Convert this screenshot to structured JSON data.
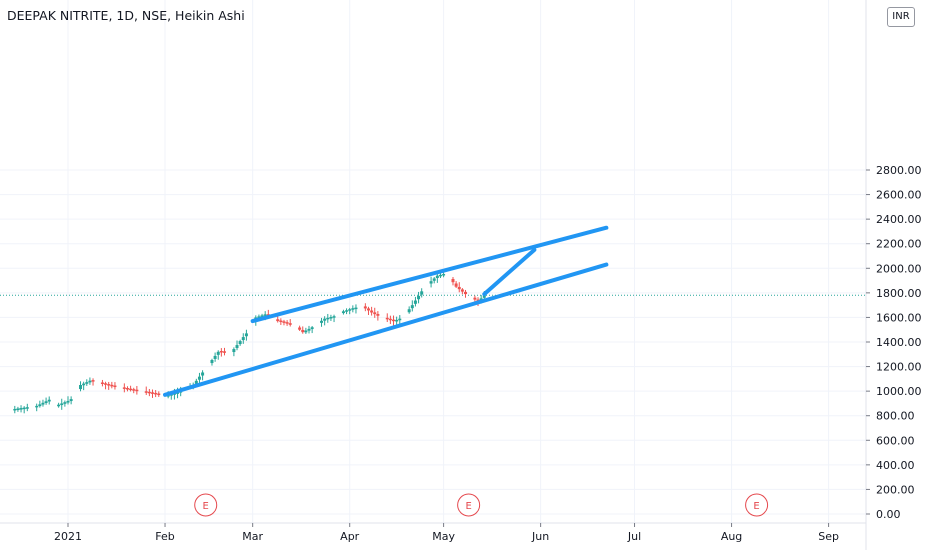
{
  "title": "DEEPAK NITRITE, 1D, NSE, Heikin Ashi",
  "currency": "INR",
  "colors": {
    "up": "#26a69a",
    "down": "#ef5350",
    "trendline": "#2196f3",
    "price_line": "#26a69a",
    "earnings": "#e5484d",
    "grid": "#f0f3fa"
  },
  "chart_data": {
    "type": "candlestick",
    "y_axis": {
      "min": 0,
      "max": 2800,
      "ticks": [
        "0.00",
        "200.00",
        "400.00",
        "600.00",
        "800.00",
        "1000.00",
        "1200.00",
        "1400.00",
        "1600.00",
        "1800.00",
        "2000.00",
        "2200.00",
        "2400.00",
        "2600.00",
        "2800.00"
      ]
    },
    "x_axis": {
      "ticks": [
        {
          "label": "2021",
          "day": 0
        },
        {
          "label": "Feb",
          "day": 31
        },
        {
          "label": "Mar",
          "day": 59
        },
        {
          "label": "Apr",
          "day": 90
        },
        {
          "label": "May",
          "day": 120
        },
        {
          "label": "Jun",
          "day": 151
        },
        {
          "label": "Jul",
          "day": 181
        },
        {
          "label": "Aug",
          "day": 212
        },
        {
          "label": "Sep",
          "day": 243
        }
      ]
    },
    "horizontal_line": 1780,
    "earnings_markers": [
      {
        "label": "E",
        "day": 44
      },
      {
        "label": "E",
        "day": 128
      },
      {
        "label": "E",
        "day": 220
      }
    ],
    "anchors": [
      {
        "day": -17,
        "price": 855
      },
      {
        "day": -10,
        "price": 880
      },
      {
        "day": -6,
        "price": 930
      },
      {
        "day": -4,
        "price": 880
      },
      {
        "day": 0,
        "price": 920
      },
      {
        "day": 2,
        "price": 950
      },
      {
        "day": 4,
        "price": 1050
      },
      {
        "day": 7,
        "price": 1085
      },
      {
        "day": 14,
        "price": 1040
      },
      {
        "day": 20,
        "price": 1010
      },
      {
        "day": 27,
        "price": 980
      },
      {
        "day": 31,
        "price": 960
      },
      {
        "day": 35,
        "price": 990
      },
      {
        "day": 40,
        "price": 1050
      },
      {
        "day": 45,
        "price": 1220
      },
      {
        "day": 48,
        "price": 1320
      },
      {
        "day": 52,
        "price": 1310
      },
      {
        "day": 56,
        "price": 1440
      },
      {
        "day": 58,
        "price": 1500
      },
      {
        "day": 60,
        "price": 1600
      },
      {
        "day": 63,
        "price": 1625
      },
      {
        "day": 67,
        "price": 1570
      },
      {
        "day": 70,
        "price": 1550
      },
      {
        "day": 73,
        "price": 1520
      },
      {
        "day": 75,
        "price": 1480
      },
      {
        "day": 78,
        "price": 1520
      },
      {
        "day": 82,
        "price": 1590
      },
      {
        "day": 85,
        "price": 1610
      },
      {
        "day": 88,
        "price": 1650
      },
      {
        "day": 91,
        "price": 1675
      },
      {
        "day": 94,
        "price": 1690
      },
      {
        "day": 97,
        "price": 1640
      },
      {
        "day": 100,
        "price": 1600
      },
      {
        "day": 104,
        "price": 1570
      },
      {
        "day": 107,
        "price": 1600
      },
      {
        "day": 110,
        "price": 1700
      },
      {
        "day": 114,
        "price": 1850
      },
      {
        "day": 118,
        "price": 1940
      },
      {
        "day": 121,
        "price": 1960
      },
      {
        "day": 124,
        "price": 1850
      },
      {
        "day": 127,
        "price": 1790
      },
      {
        "day": 129,
        "price": 1760
      },
      {
        "day": 131,
        "price": 1730
      },
      {
        "day": 133,
        "price": 1780
      }
    ],
    "trendlines": [
      {
        "name": "upper-channel",
        "from": {
          "day": 59,
          "price": 1570
        },
        "to": {
          "day": 172,
          "price": 2330
        }
      },
      {
        "name": "lower-channel",
        "from": {
          "day": 31,
          "price": 970
        },
        "to": {
          "day": 172,
          "price": 2030
        }
      },
      {
        "name": "projection",
        "from": {
          "day": 133,
          "price": 1790
        },
        "to": {
          "day": 149,
          "price": 2150
        }
      }
    ]
  }
}
